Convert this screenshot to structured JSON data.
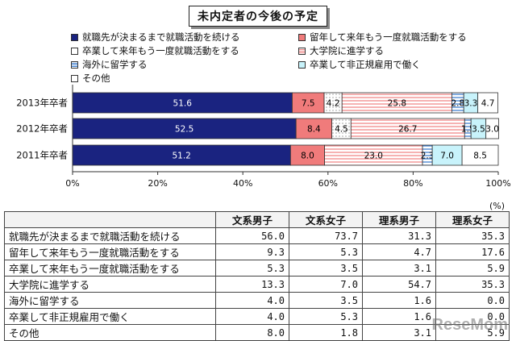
{
  "chart_data": {
    "type": "bar",
    "stacked": true,
    "orientation": "horizontal",
    "title": "未内定者の今後の予定",
    "categories": [
      "2013年卒者",
      "2012年卒者",
      "2011年卒者"
    ],
    "xlim": [
      0,
      100
    ],
    "x_ticks": [
      "0%",
      "20%",
      "40%",
      "60%",
      "80%",
      "100%"
    ],
    "grid": false,
    "legend_position": "top",
    "series": [
      {
        "name": "就職先が決まるまで就職活動を続ける",
        "values": [
          51.6,
          52.5,
          51.2
        ],
        "color": "#1a2380",
        "pattern": "solid",
        "label_color": "#ffffff"
      },
      {
        "name": "留年して来年もう一度就職活動をする",
        "values": [
          7.5,
          8.4,
          8.0
        ],
        "color": "#f07b7b",
        "pattern": "solid",
        "label_color": "#000000"
      },
      {
        "name": "卒業して来年もう一度就職活動をする",
        "values": [
          4.2,
          4.5,
          0
        ],
        "color": "#ffffff",
        "pattern": "dots",
        "label_color": "#000000"
      },
      {
        "name": "大学院に進学する",
        "values": [
          25.8,
          26.7,
          23.0
        ],
        "color": "#ffffff",
        "pattern": "red-lines",
        "label_color": "#000000"
      },
      {
        "name": "海外に留学する",
        "values": [
          2.8,
          1.5,
          2.3
        ],
        "color": "#ffffff",
        "pattern": "blue-lines",
        "label_color": "#000000"
      },
      {
        "name": "卒業して非正規雇用で働く",
        "values": [
          3.3,
          3.5,
          7.0
        ],
        "color": "#c8f3fb",
        "pattern": "solid",
        "label_color": "#000000"
      },
      {
        "name": "その他",
        "values": [
          4.7,
          3.0,
          8.5
        ],
        "color": "#ffffff",
        "pattern": "solid",
        "label_color": "#000000"
      }
    ]
  },
  "unit_label": "(%)",
  "table": {
    "headers": [
      "",
      "文系男子",
      "文系女子",
      "理系男子",
      "理系女子"
    ],
    "rows": [
      {
        "label": "就職先が決まるまで就職活動を続ける",
        "values": [
          "56.0",
          "73.7",
          "31.3",
          "35.3"
        ]
      },
      {
        "label": "留年して来年もう一度就職活動をする",
        "values": [
          "9.3",
          "5.3",
          "4.7",
          "17.6"
        ]
      },
      {
        "label": "卒業して来年もう一度就職活動をする",
        "values": [
          "5.3",
          "3.5",
          "3.1",
          "5.9"
        ]
      },
      {
        "label": "大学院に進学する",
        "values": [
          "13.3",
          "7.0",
          "54.7",
          "35.3"
        ]
      },
      {
        "label": "海外に留学する",
        "values": [
          "4.0",
          "3.5",
          "1.6",
          "0.0"
        ]
      },
      {
        "label": "卒業して非正規雇用で働く",
        "values": [
          "4.0",
          "5.3",
          "1.6",
          "0.0"
        ]
      },
      {
        "label": "その他",
        "values": [
          "8.0",
          "1.8",
          "3.1",
          "5.9"
        ]
      }
    ]
  },
  "watermark": "ReseMom"
}
